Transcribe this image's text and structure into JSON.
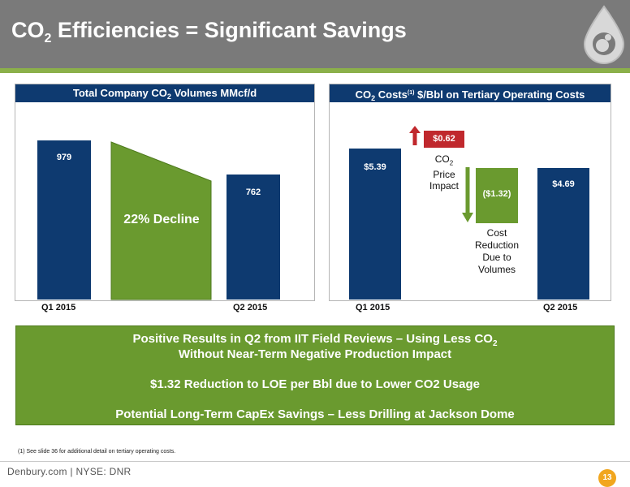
{
  "slide": {
    "title_main": "CO",
    "title_sub": "2",
    "title_rest": " Efficiencies = Significant Savings",
    "page_number": "13",
    "footer": "Denbury.com | NYSE: DNR",
    "footnote": "(1)   See slide 36 for additional detail on tertiary operating costs."
  },
  "left_chart": {
    "header_a": "Total Company CO",
    "header_sub": "2",
    "header_b": " Volumes MMcf/d",
    "decline_label": "22% Decline",
    "x_labels": [
      "Q1 2015",
      "Q2 2015"
    ]
  },
  "right_chart": {
    "header_a": "CO",
    "header_sub": "2",
    "header_b": " Costs",
    "header_sup": "(1)",
    "header_c": " $/Bbl on Tertiary Operating Costs",
    "price_line1": "CO",
    "price_sub": "2",
    "price_line2": "Price",
    "price_line3": "Impact",
    "cost_lines": [
      "Cost",
      "Reduction",
      "Due to",
      "Volumes"
    ],
    "x_labels": [
      "Q1 2015",
      "Q2 2015"
    ]
  },
  "chart_data": [
    {
      "type": "bar",
      "title": "Total Company CO2 Volumes MMcf/d",
      "categories": [
        "Q1 2015",
        "Q2 2015"
      ],
      "values": [
        979,
        762
      ],
      "value_labels": [
        "979",
        "762"
      ],
      "annotation": "22% Decline"
    },
    {
      "type": "bar",
      "title": "CO2 Costs(1) $/Bbl on Tertiary Operating Costs",
      "categories": [
        "Q1 2015",
        "CO2 Price Impact",
        "Cost Reduction Due to Volumes",
        "Q2 2015"
      ],
      "values": [
        5.39,
        0.62,
        -1.32,
        4.69
      ],
      "value_labels": [
        "$5.39",
        "$0.62",
        "($1.32)",
        "$4.69"
      ]
    }
  ],
  "summary": {
    "line1a": "Positive Results in Q2 from IIT Field Reviews – Using Less CO",
    "line1sub": "2",
    "line2": "Without Near-Term Negative Production Impact",
    "line3": "$1.32 Reduction to LOE per Bbl due to Lower CO2 Usage",
    "line4": "Potential Long-Term CapEx Savings – Less Drilling at Jackson Dome"
  },
  "colors": {
    "navy": "#0e3a70",
    "green": "#6a9a2f",
    "red": "#c0282d",
    "header_gray": "#7a7a7a",
    "orange": "#f1a61e"
  }
}
